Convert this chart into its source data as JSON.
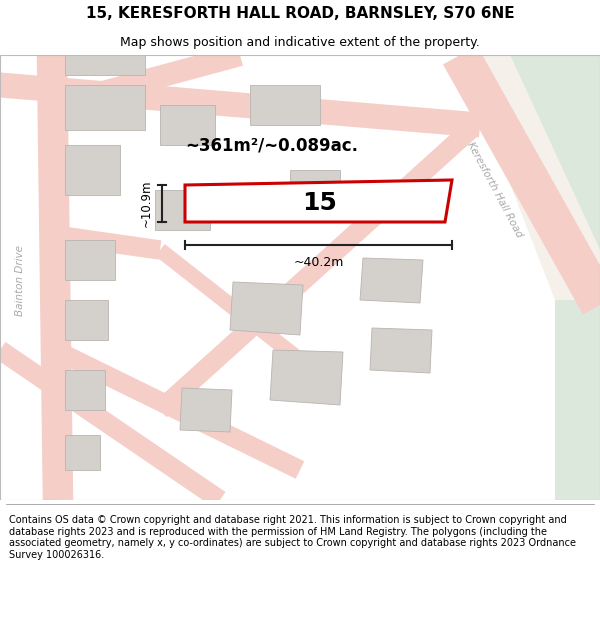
{
  "title_line1": "15, KERESFORTH HALL ROAD, BARNSLEY, S70 6NE",
  "title_line2": "Map shows position and indicative extent of the property.",
  "footer_text": "Contains OS data © Crown copyright and database right 2021. This information is subject to Crown copyright and database rights 2023 and is reproduced with the permission of HM Land Registry. The polygons (including the associated geometry, namely x, y co-ordinates) are subject to Crown copyright and database rights 2023 Ordnance Survey 100026316.",
  "area_label": "~361m²/~0.089ac.",
  "width_label": "~40.2m",
  "height_label": "~10.9m",
  "property_number": "15",
  "map_bg": "#f5f0ea",
  "road_fill": "#f5cec8",
  "road_edge": "#e8b8b0",
  "property_outline_color": "#cc0000",
  "dim_line_color": "#222222",
  "building_fill": "#d4d0cc",
  "building_edge": "#b8b4b0",
  "green_fill": "#dce8dc",
  "road_label_color": "#aaaaaa",
  "street_label_color": "#999999",
  "title_fontsize": 11,
  "subtitle_fontsize": 9,
  "footer_fontsize": 7
}
